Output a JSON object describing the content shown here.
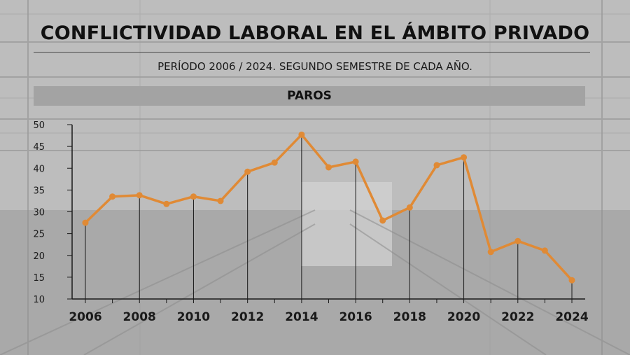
{
  "title": "CONFLICTIVIDAD LABORAL EN EL ÁMBITO PRIVADO",
  "subtitle": "PERÍODO 2006 / 2024. SEGUNDO SEMESTRE DE CADA AÑO.",
  "banner": "PAROS",
  "colors": {
    "line": "#e08a35",
    "axis": "#1a1a1a",
    "banner": "#a3a3a3"
  },
  "chart_data": {
    "type": "line",
    "title": "PAROS",
    "xlabel": "",
    "ylabel": "",
    "x": [
      2006,
      2007,
      2008,
      2009,
      2010,
      2011,
      2012,
      2013,
      2014,
      2015,
      2016,
      2017,
      2018,
      2019,
      2020,
      2021,
      2022,
      2023,
      2024
    ],
    "values": [
      27.5,
      33.5,
      33.8,
      31.8,
      33.5,
      32.5,
      39.2,
      41.3,
      47.7,
      40.2,
      41.5,
      28.0,
      31.0,
      40.7,
      42.5,
      20.8,
      23.3,
      21.1,
      14.3
    ],
    "ylim": [
      10,
      50
    ],
    "yticks": [
      10,
      15,
      20,
      25,
      30,
      35,
      40,
      45,
      50
    ],
    "xtick_labels": [
      "2006",
      "2008",
      "2010",
      "2012",
      "2014",
      "2016",
      "2018",
      "2020",
      "2022",
      "2024"
    ],
    "xtick_years": [
      2006,
      2008,
      2010,
      2012,
      2014,
      2016,
      2018,
      2020,
      2022,
      2024
    ],
    "drop_lines_years": [
      2006,
      2008,
      2010,
      2012,
      2014,
      2016,
      2018,
      2020,
      2022,
      2024
    ],
    "grid": false,
    "markers": true
  }
}
